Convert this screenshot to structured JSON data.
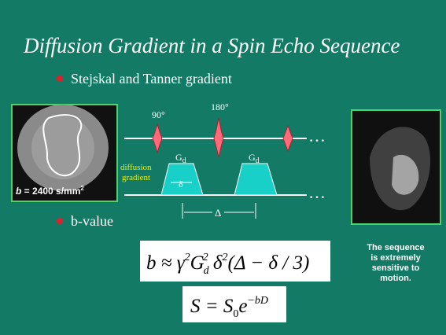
{
  "slide": {
    "title": "Diffusion Gradient in a Spin Echo Sequence",
    "bullets": [
      "Stejskal and Tanner gradient",
      "b-value"
    ],
    "image_label": {
      "parts": [
        "b",
        " = 2400  s/mm",
        "2"
      ]
    },
    "diagram": {
      "pulse_labels": [
        "90°",
        "180°"
      ],
      "gradient_labels": [
        "G",
        "d",
        "G",
        "d"
      ],
      "diffusion_label": [
        "diffusion",
        "gradient"
      ],
      "small_delta": "δ",
      "big_delta": "Δ",
      "ellipsis": "…"
    },
    "formula_b": [
      "b ≈ γ",
      "2",
      "G",
      "d",
      "2",
      " δ",
      "2",
      "(Δ − δ / 3)"
    ],
    "formula_s": [
      "S = S",
      "0",
      "e",
      "−bD"
    ],
    "caption": [
      "The sequence",
      "is extremely",
      "sensitive to",
      "motion."
    ]
  }
}
